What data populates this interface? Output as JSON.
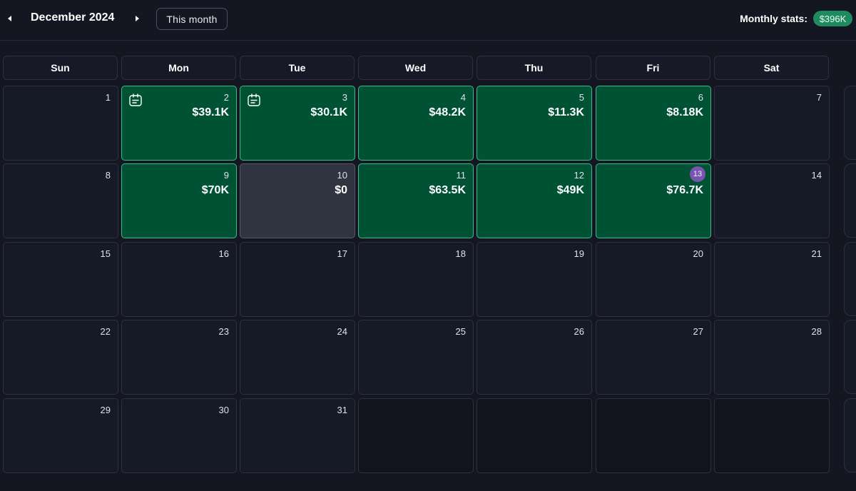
{
  "header": {
    "month_title": "December 2024",
    "this_month_label": "This month",
    "stats_label": "Monthly stats:",
    "stats_value": "$396K"
  },
  "weekdays": [
    "Sun",
    "Mon",
    "Tue",
    "Wed",
    "Thu",
    "Fri",
    "Sat"
  ],
  "today": 13,
  "colors": {
    "background": "#141722",
    "income_day": "#005234",
    "income_border": "#3fb98a",
    "zero_day": "#303440",
    "today_badge": "#7a55b0",
    "stats_badge": "#1f8a60"
  },
  "weeks": [
    [
      {
        "day": "1"
      },
      {
        "day": "2",
        "amount": "$39.1K",
        "status": "income",
        "note": true
      },
      {
        "day": "3",
        "amount": "$30.1K",
        "status": "income",
        "note": true
      },
      {
        "day": "4",
        "amount": "$48.2K",
        "status": "income"
      },
      {
        "day": "5",
        "amount": "$11.3K",
        "status": "income"
      },
      {
        "day": "6",
        "amount": "$8.18K",
        "status": "income"
      },
      {
        "day": "7"
      }
    ],
    [
      {
        "day": "8"
      },
      {
        "day": "9",
        "amount": "$70K",
        "status": "income"
      },
      {
        "day": "10",
        "amount": "$0",
        "status": "zero"
      },
      {
        "day": "11",
        "amount": "$63.5K",
        "status": "income"
      },
      {
        "day": "12",
        "amount": "$49K",
        "status": "income"
      },
      {
        "day": "13",
        "amount": "$76.7K",
        "status": "income",
        "today": true
      },
      {
        "day": "14"
      }
    ],
    [
      {
        "day": "15"
      },
      {
        "day": "16"
      },
      {
        "day": "17"
      },
      {
        "day": "18"
      },
      {
        "day": "19"
      },
      {
        "day": "20"
      },
      {
        "day": "21"
      }
    ],
    [
      {
        "day": "22"
      },
      {
        "day": "23"
      },
      {
        "day": "24"
      },
      {
        "day": "25"
      },
      {
        "day": "26"
      },
      {
        "day": "27"
      },
      {
        "day": "28"
      }
    ],
    [
      {
        "day": "29"
      },
      {
        "day": "30"
      },
      {
        "day": "31"
      },
      {},
      {},
      {},
      {}
    ]
  ]
}
